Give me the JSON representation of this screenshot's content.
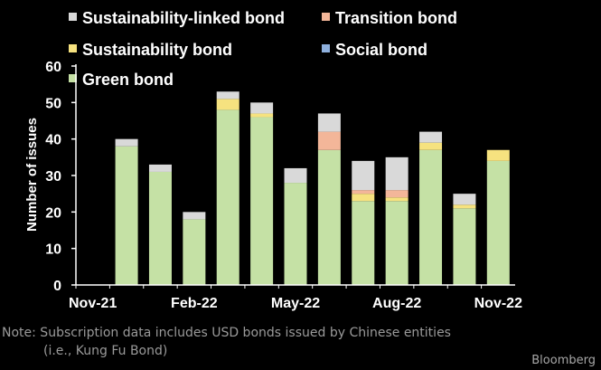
{
  "chart_data": {
    "type": "bar",
    "stacked": true,
    "ylabel": "Number of issues",
    "ylim": [
      0,
      60
    ],
    "yticks": [
      0,
      10,
      20,
      30,
      40,
      50,
      60
    ],
    "x_tick_labels": [
      "Nov-21",
      "Feb-22",
      "May-22",
      "Aug-22",
      "Nov-22"
    ],
    "categories": [
      "Nov-21",
      "Dec-21",
      "Jan-22",
      "Feb-22",
      "Mar-22",
      "Apr-22",
      "May-22",
      "Jun-22",
      "Jul-22",
      "Aug-22",
      "Sep-22",
      "Oct-22",
      "Nov-22"
    ],
    "grid": false,
    "legend_position": "top",
    "series": [
      {
        "name": "Green bond",
        "color": "#c5e1a5",
        "values": [
          0,
          38,
          31,
          18,
          48,
          46,
          28,
          37,
          23,
          23,
          37,
          21,
          34
        ]
      },
      {
        "name": "Social bond",
        "color": "#8fb1de",
        "values": [
          0,
          0,
          0,
          0,
          0,
          0,
          0,
          0,
          0,
          0,
          0,
          0,
          0
        ]
      },
      {
        "name": "Sustainability bond",
        "color": "#f6e27f",
        "values": [
          0,
          0,
          0,
          0,
          3,
          1,
          0,
          0,
          2,
          1,
          2,
          1,
          3
        ]
      },
      {
        "name": "Transition bond",
        "color": "#f3b699",
        "values": [
          0,
          0,
          0,
          0,
          0,
          0,
          0,
          5,
          1,
          2,
          0,
          0,
          0
        ]
      },
      {
        "name": "Sustainability-linked bond",
        "color": "#d9d9d9",
        "values": [
          0,
          2,
          2,
          2,
          2,
          3,
          4,
          5,
          8,
          9,
          3,
          3,
          0
        ]
      }
    ]
  },
  "legend": [
    {
      "label": "Sustainability-linked bond",
      "color": "#d9d9d9"
    },
    {
      "label": "Transition bond",
      "color": "#f3b699"
    },
    {
      "label": "Sustainability bond",
      "color": "#f6e27f"
    },
    {
      "label": "Social bond",
      "color": "#8fb1de"
    },
    {
      "label": "Green bond",
      "color": "#c5e1a5"
    }
  ],
  "note_line1": "Note: Subscription data includes USD bonds issued by Chinese entities",
  "note_line2": "(i.e., Kung Fu Bond)",
  "brand": "Bloomberg"
}
